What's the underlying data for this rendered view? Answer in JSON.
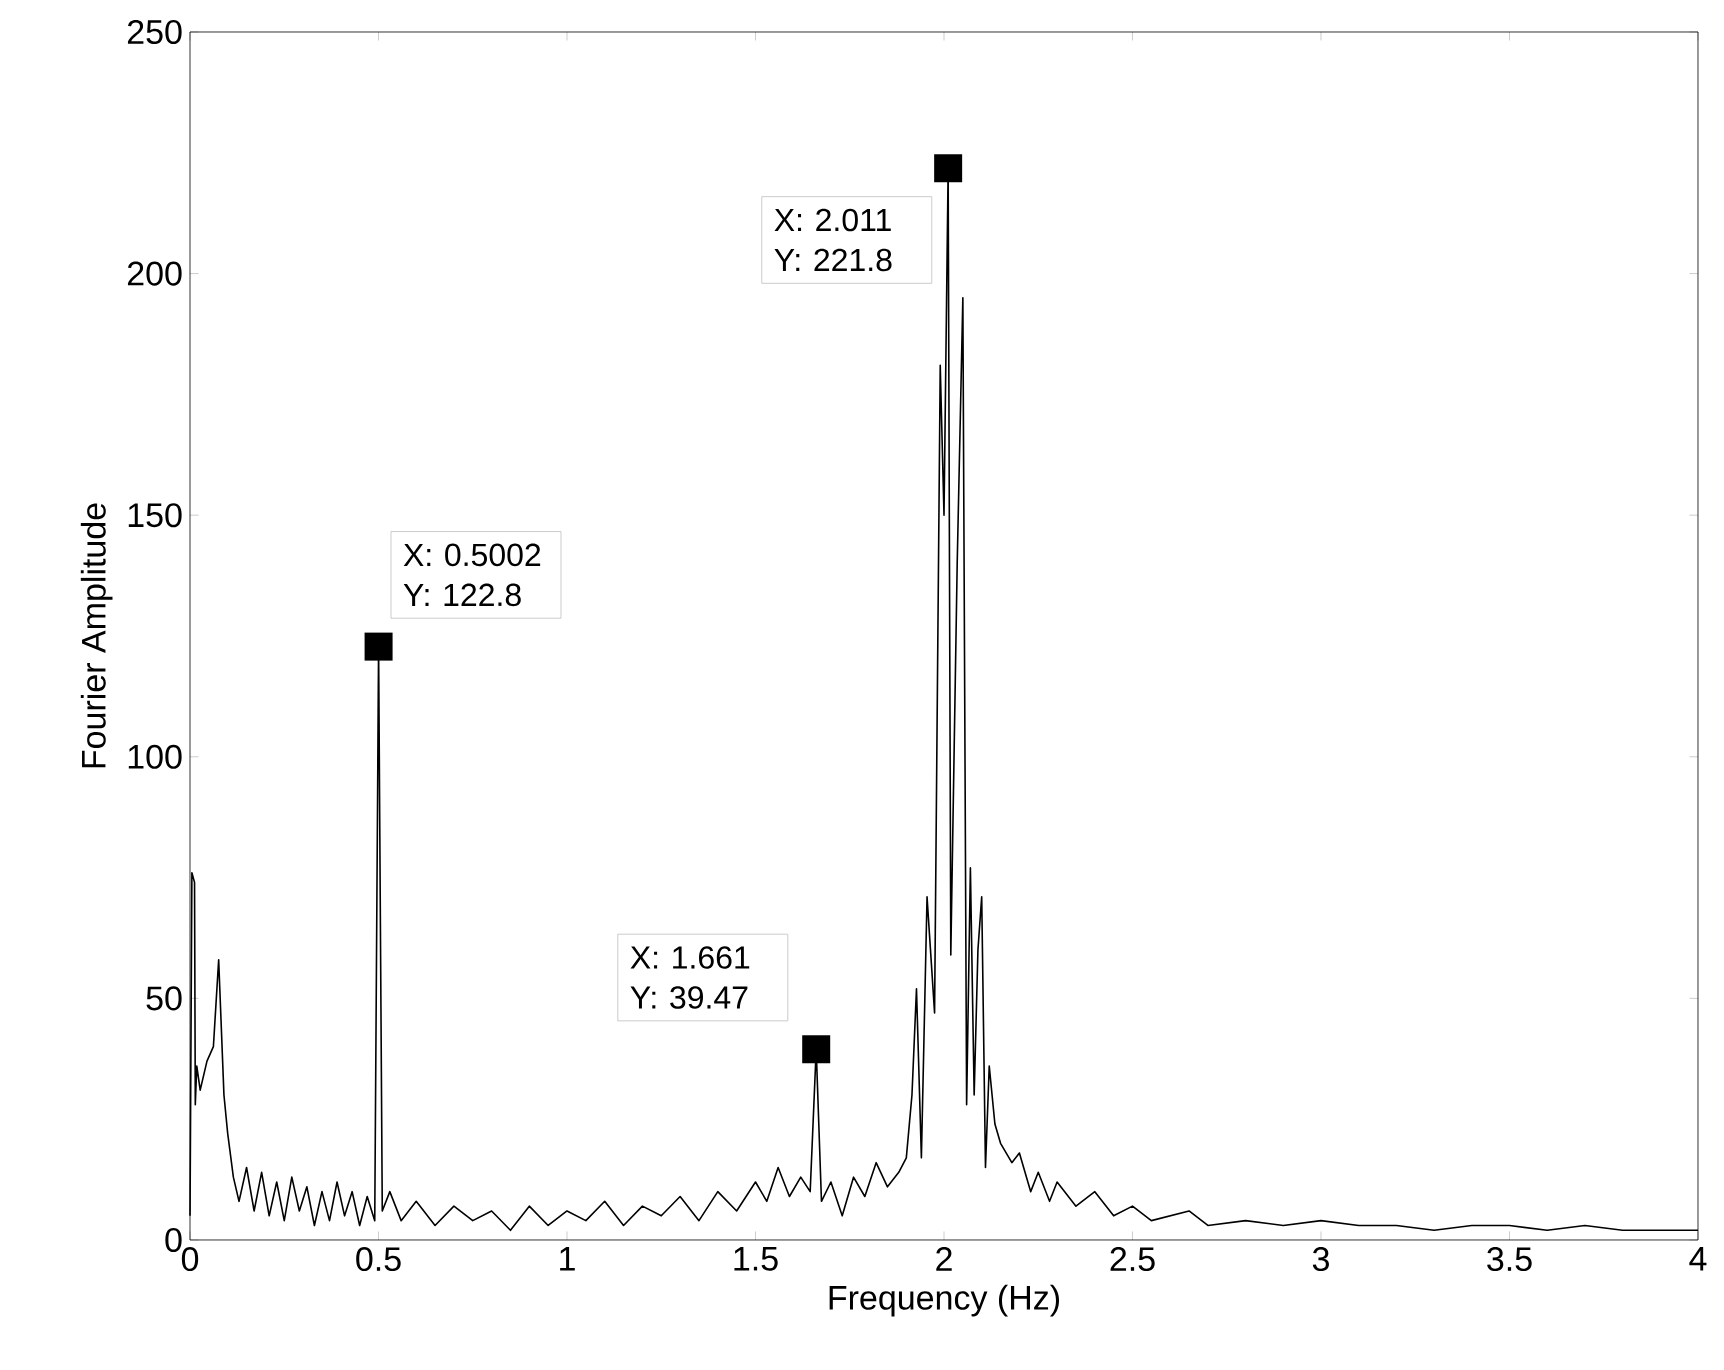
{
  "chart_data": {
    "type": "line",
    "xlabel": "Frequency (Hz)",
    "ylabel": "Fourier Amplitude",
    "xlim": [
      0,
      4
    ],
    "ylim": [
      0,
      250
    ],
    "xticks": [
      0,
      0.5,
      1,
      1.5,
      2,
      2.5,
      3,
      3.5,
      4
    ],
    "yticks": [
      0,
      50,
      100,
      150,
      200,
      250
    ],
    "grid": false,
    "marker": "none",
    "line_style": "solid",
    "series": [
      {
        "color": "#000000",
        "x": [
          0,
          0.005,
          0.012,
          0.014,
          0.018,
          0.027,
          0.045,
          0.062,
          0.076,
          0.09,
          0.1,
          0.115,
          0.13,
          0.15,
          0.17,
          0.19,
          0.21,
          0.23,
          0.25,
          0.27,
          0.29,
          0.31,
          0.33,
          0.35,
          0.37,
          0.39,
          0.41,
          0.43,
          0.45,
          0.47,
          0.49,
          0.5002,
          0.51,
          0.53,
          0.56,
          0.6,
          0.65,
          0.7,
          0.75,
          0.8,
          0.85,
          0.9,
          0.95,
          1.0,
          1.05,
          1.1,
          1.15,
          1.2,
          1.25,
          1.3,
          1.35,
          1.4,
          1.45,
          1.5,
          1.53,
          1.56,
          1.59,
          1.62,
          1.645,
          1.661,
          1.675,
          1.7,
          1.73,
          1.76,
          1.79,
          1.82,
          1.85,
          1.88,
          1.9,
          1.915,
          1.927,
          1.94,
          1.955,
          1.975,
          1.99,
          2.0,
          2.011,
          2.018,
          2.035,
          2.05,
          2.06,
          2.07,
          2.08,
          2.09,
          2.1,
          2.11,
          2.12,
          2.135,
          2.15,
          2.18,
          2.2,
          2.23,
          2.25,
          2.28,
          2.3,
          2.35,
          2.4,
          2.45,
          2.5,
          2.55,
          2.6,
          2.65,
          2.7,
          2.8,
          2.9,
          3.0,
          3.1,
          3.2,
          3.3,
          3.4,
          3.5,
          3.6,
          3.7,
          3.8,
          3.9,
          4.0
        ],
        "values": [
          5,
          76,
          74,
          28,
          36,
          31,
          37,
          40,
          58,
          30,
          22,
          13,
          8,
          15,
          6,
          14,
          5,
          12,
          4,
          13,
          6,
          11,
          3,
          10,
          4,
          12,
          5,
          10,
          3,
          9,
          4,
          122.8,
          6,
          10,
          4,
          8,
          3,
          7,
          4,
          6,
          2,
          7,
          3,
          6,
          4,
          8,
          3,
          7,
          5,
          9,
          4,
          10,
          6,
          12,
          8,
          15,
          9,
          13,
          10,
          39.47,
          8,
          12,
          5,
          13,
          9,
          16,
          11,
          14,
          17,
          30,
          52,
          17,
          71,
          47,
          181,
          150,
          221.8,
          59,
          140,
          195,
          28,
          77,
          30,
          60,
          71,
          15,
          36,
          24,
          20,
          16,
          18,
          10,
          14,
          8,
          12,
          7,
          10,
          5,
          7,
          4,
          5,
          6,
          3,
          4,
          3,
          4,
          3,
          3,
          2,
          3,
          3,
          2,
          3,
          2,
          2,
          2
        ]
      }
    ],
    "annotations": [
      {
        "text": "X: 0.5002 Y: 122.8",
        "x": 0.5002,
        "y": 122.8
      },
      {
        "text": "X: 1.661 Y: 39.47",
        "x": 1.661,
        "y": 39.47
      },
      {
        "text": "X: 2.011 Y: 221.8",
        "x": 2.011,
        "y": 221.8
      }
    ]
  }
}
